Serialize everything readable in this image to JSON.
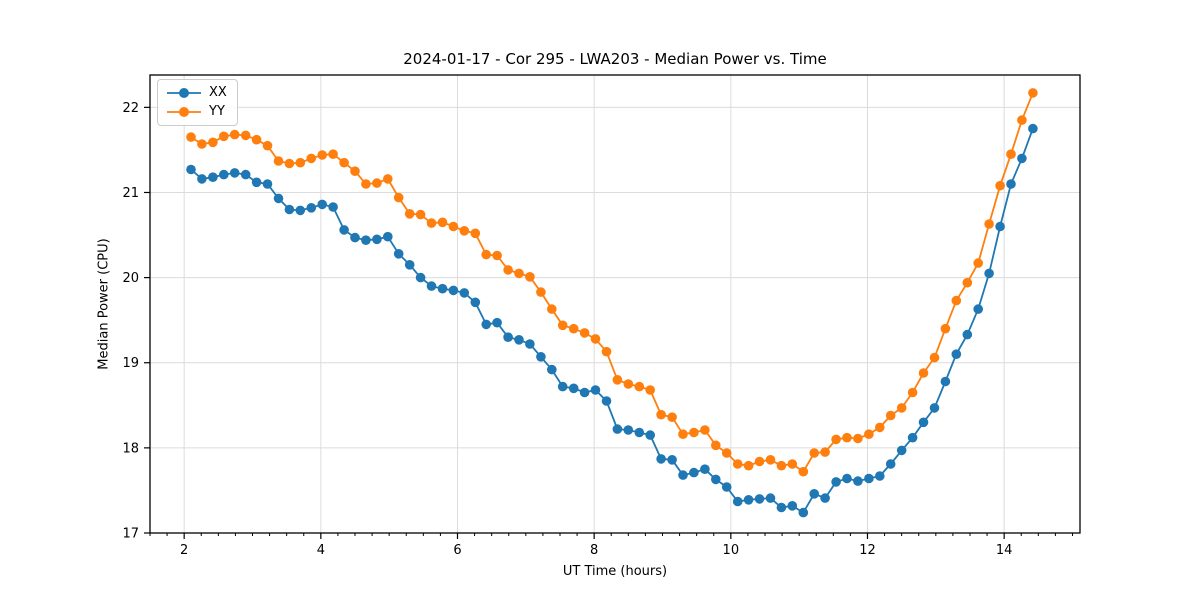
{
  "chart_data": {
    "type": "line",
    "title": "2024-01-17 - Cor 295 - LWA203 - Median Power vs. Time",
    "xlabel": "UT Time (hours)",
    "ylabel": "Median Power (CPU)",
    "xlim": [
      1.5,
      15.11
    ],
    "ylim": [
      17.0,
      22.38
    ],
    "xticks": [
      2,
      4,
      6,
      8,
      10,
      12,
      14
    ],
    "yticks": [
      17,
      18,
      19,
      20,
      21,
      22
    ],
    "minor_xtick_step": 0.25,
    "grid": true,
    "grid_color": "#dcdcdc",
    "spine_color": "#000000",
    "tick_label_color": "#000000",
    "legend_position": "upper left",
    "x": [
      2.1,
      2.26,
      2.42,
      2.58,
      2.74,
      2.9,
      3.06,
      3.22,
      3.38,
      3.54,
      3.7,
      3.86,
      4.02,
      4.18,
      4.34,
      4.5,
      4.66,
      4.82,
      4.98,
      5.14,
      5.3,
      5.46,
      5.62,
      5.78,
      5.94,
      6.1,
      6.26,
      6.42,
      6.58,
      6.74,
      6.9,
      7.06,
      7.22,
      7.38,
      7.54,
      7.7,
      7.86,
      8.02,
      8.18,
      8.34,
      8.5,
      8.66,
      8.82,
      8.98,
      9.14,
      9.3,
      9.46,
      9.62,
      9.78,
      9.94,
      10.1,
      10.26,
      10.42,
      10.58,
      10.74,
      10.9,
      11.06,
      11.22,
      11.38,
      11.54,
      11.7,
      11.86,
      12.02,
      12.18,
      12.34,
      12.5,
      12.66,
      12.82,
      12.98,
      13.14,
      13.3,
      13.46,
      13.62,
      13.78,
      13.94,
      14.1,
      14.26,
      14.42
    ],
    "series": [
      {
        "name": "XX",
        "color": "#1f77b4",
        "values": [
          21.27,
          21.16,
          21.18,
          21.21,
          21.23,
          21.21,
          21.12,
          21.1,
          20.93,
          20.8,
          20.79,
          20.82,
          20.86,
          20.83,
          20.56,
          20.47,
          20.44,
          20.45,
          20.48,
          20.28,
          20.15,
          20.0,
          19.9,
          19.87,
          19.85,
          19.82,
          19.71,
          19.45,
          19.47,
          19.3,
          19.27,
          19.22,
          19.07,
          18.92,
          18.72,
          18.7,
          18.65,
          18.68,
          18.55,
          18.22,
          18.21,
          18.18,
          18.15,
          17.87,
          17.86,
          17.68,
          17.71,
          17.75,
          17.63,
          17.54,
          17.37,
          17.39,
          17.4,
          17.41,
          17.3,
          17.32,
          17.24,
          17.46,
          17.41,
          17.6,
          17.64,
          17.61,
          17.64,
          17.67,
          17.81,
          17.97,
          18.12,
          18.3,
          18.47,
          18.78,
          19.1,
          19.33,
          19.63,
          20.05,
          20.6,
          21.1,
          21.4,
          21.75
        ]
      },
      {
        "name": "YY",
        "color": "#ff7f0e",
        "values": [
          21.65,
          21.57,
          21.59,
          21.66,
          21.68,
          21.67,
          21.62,
          21.55,
          21.37,
          21.34,
          21.35,
          21.4,
          21.44,
          21.45,
          21.35,
          21.25,
          21.1,
          21.11,
          21.16,
          20.94,
          20.75,
          20.74,
          20.64,
          20.65,
          20.6,
          20.55,
          20.52,
          20.27,
          20.26,
          20.09,
          20.05,
          20.01,
          19.83,
          19.63,
          19.44,
          19.4,
          19.35,
          19.28,
          19.13,
          18.8,
          18.75,
          18.72,
          18.68,
          18.39,
          18.36,
          18.16,
          18.18,
          18.21,
          18.03,
          17.94,
          17.81,
          17.79,
          17.84,
          17.86,
          17.79,
          17.81,
          17.72,
          17.94,
          17.95,
          18.1,
          18.12,
          18.11,
          18.16,
          18.24,
          18.38,
          18.47,
          18.65,
          18.88,
          19.06,
          19.4,
          19.73,
          19.94,
          20.17,
          20.63,
          21.08,
          21.45,
          21.85,
          22.17
        ]
      }
    ]
  }
}
